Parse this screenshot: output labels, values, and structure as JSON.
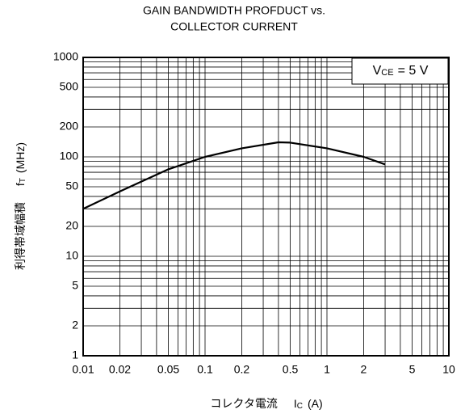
{
  "chart_data": {
    "type": "line",
    "title": [
      "GAIN BANDWIDTH PROFDUCT vs.",
      "COLLECTOR CURRENT"
    ],
    "annotation": {
      "main": "V",
      "sub": "CE",
      "rest": "= 5 V"
    },
    "xlabel": {
      "main": "コレクタ電流",
      "symbol": "I",
      "sub": "C",
      "unit": "(A)"
    },
    "ylabel": {
      "main": "利得帯域幅積",
      "symbol": "f",
      "sub": "T",
      "unit": "(MHz)"
    },
    "log_x": true,
    "log_y": true,
    "grid": true,
    "x": [
      0.01,
      0.02,
      0.05,
      0.1,
      0.2,
      0.4,
      0.5,
      1,
      2,
      3
    ],
    "series": [
      {
        "name": "fT",
        "color": "#000000",
        "values": [
          30,
          45,
          75,
          100,
          122,
          140,
          139,
          122,
          100,
          84
        ]
      }
    ],
    "xlim": [
      0.01,
      10
    ],
    "ylim": [
      1,
      1000
    ],
    "xticks": [
      0.01,
      0.02,
      0.05,
      0.1,
      0.2,
      0.5,
      1,
      2,
      5,
      10
    ],
    "yticks": [
      1,
      2,
      5,
      10,
      20,
      50,
      100,
      200,
      500,
      1000
    ],
    "xminor_ticks": [
      0.03,
      0.04,
      0.06,
      0.07,
      0.08,
      0.09,
      0.3,
      0.4,
      0.6,
      0.7,
      0.8,
      0.9,
      3,
      4,
      6,
      7,
      8,
      9
    ],
    "yminor_ticks": [
      3,
      4,
      6,
      7,
      8,
      9,
      30,
      40,
      60,
      70,
      80,
      90,
      300,
      400,
      600,
      700,
      800,
      900
    ]
  }
}
